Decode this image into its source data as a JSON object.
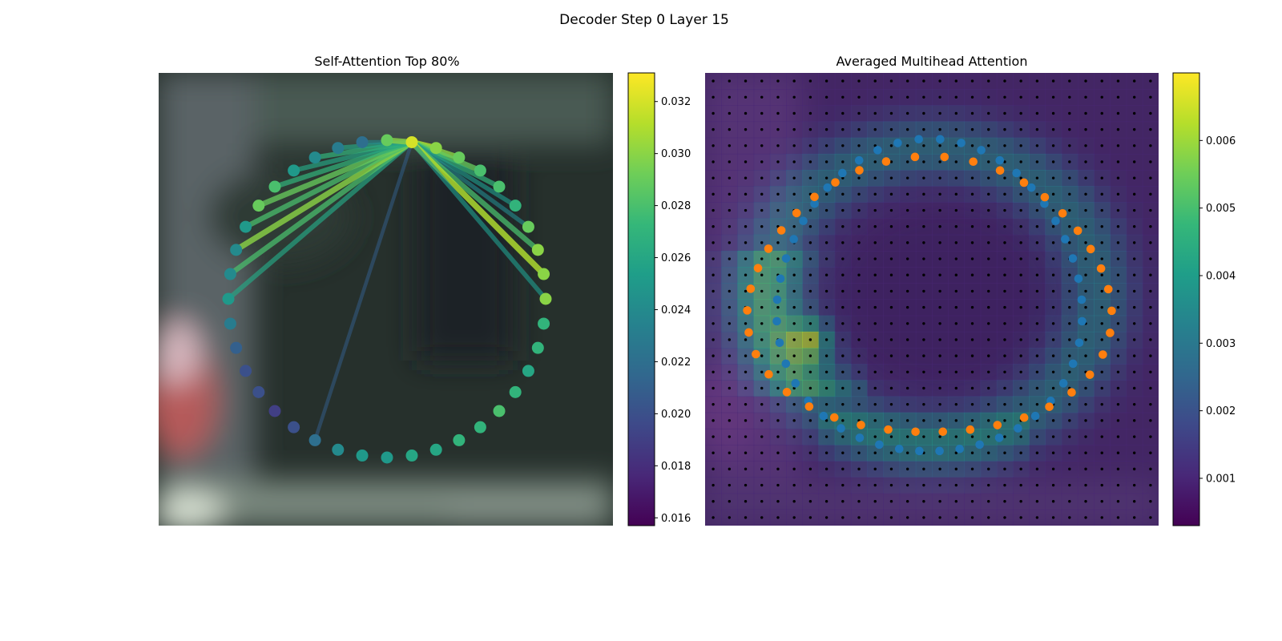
{
  "figure": {
    "suptitle": "Decoder Step 0 Layer 15"
  },
  "colors": {
    "viridis": [
      "#440154",
      "#482878",
      "#3e4989",
      "#31688e",
      "#26828e",
      "#1f9e89",
      "#35b779",
      "#6ece58",
      "#b5de2b",
      "#fde725"
    ],
    "tokens_a": "#1f77b4",
    "tokens_b": "#ff7f0e",
    "grid_dots": "#000000"
  },
  "chart_data": [
    {
      "type": "graph",
      "title": "Self-Attention Top 80%",
      "node_count": 40,
      "source_node": 31,
      "node_values": [
        0.03,
        0.027,
        0.027,
        0.026,
        0.027,
        0.028,
        0.027,
        0.027,
        0.026,
        0.026,
        0.025,
        0.025,
        0.024,
        0.022,
        0.02,
        0.019,
        0.02,
        0.02,
        0.021,
        0.023,
        0.025,
        0.024,
        0.024,
        0.025,
        0.029,
        0.028,
        0.025,
        0.024,
        0.023,
        0.022,
        0.029,
        0.032,
        0.03,
        0.029,
        0.028,
        0.028,
        0.027,
        0.029,
        0.03,
        0.03
      ],
      "edge_targets": [
        20,
        21,
        22,
        23,
        24,
        25,
        26,
        27,
        28,
        29,
        30,
        32,
        33,
        34,
        35,
        36,
        37,
        38,
        39,
        0,
        13
      ],
      "edge_values": [
        0.026,
        0.028,
        0.03,
        0.028,
        0.029,
        0.027,
        0.026,
        0.027,
        0.026,
        0.024,
        0.03,
        0.031,
        0.03,
        0.029,
        0.027,
        0.025,
        0.024,
        0.028,
        0.031,
        0.025,
        0.021
      ],
      "colorbar": {
        "min": 0.0157,
        "max": 0.0331,
        "ticks": [
          "0.016",
          "0.018",
          "0.020",
          "0.022",
          "0.024",
          "0.026",
          "0.028",
          "0.030",
          "0.032"
        ]
      }
    },
    {
      "type": "heatmap",
      "title": "Averaged Multihead Attention",
      "grid_cols": 28,
      "grid_rows": 28,
      "peak_cell": [
        6,
        16
      ],
      "colorbar": {
        "min": 0.0003,
        "max": 0.007,
        "ticks": [
          "0.001",
          "0.002",
          "0.003",
          "0.004",
          "0.005",
          "0.006"
        ]
      },
      "series": [
        {
          "color_key": "tokens_a",
          "count": 46
        },
        {
          "color_key": "tokens_b",
          "count": 40
        }
      ]
    }
  ]
}
